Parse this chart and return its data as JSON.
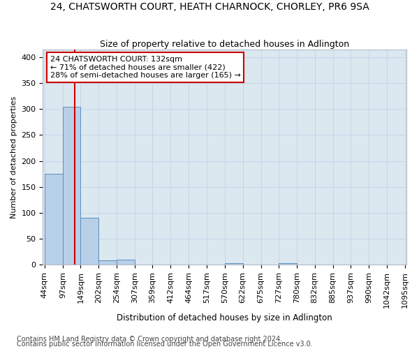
{
  "title": "24, CHATSWORTH COURT, HEATH CHARNOCK, CHORLEY, PR6 9SA",
  "subtitle": "Size of property relative to detached houses in Adlington",
  "xlabel": "Distribution of detached houses by size in Adlington",
  "ylabel": "Number of detached properties",
  "bins": [
    "44sqm",
    "97sqm",
    "149sqm",
    "202sqm",
    "254sqm",
    "307sqm",
    "359sqm",
    "412sqm",
    "464sqm",
    "517sqm",
    "570sqm",
    "622sqm",
    "675sqm",
    "727sqm",
    "780sqm",
    "832sqm",
    "885sqm",
    "937sqm",
    "990sqm",
    "1042sqm",
    "1095sqm"
  ],
  "bin_edges": [
    44,
    97,
    149,
    202,
    254,
    307,
    359,
    412,
    464,
    517,
    570,
    622,
    675,
    727,
    780,
    832,
    885,
    937,
    990,
    1042,
    1095
  ],
  "counts": [
    175,
    305,
    90,
    8,
    10,
    0,
    0,
    0,
    0,
    0,
    3,
    0,
    0,
    3,
    0,
    0,
    0,
    0,
    0,
    0
  ],
  "bar_color": "#b8cfe8",
  "bar_edge_color": "#5a8fbc",
  "property_size": 132,
  "red_line_color": "#cc0000",
  "annotation_text": "24 CHATSWORTH COURT: 132sqm\n← 71% of detached houses are smaller (422)\n28% of semi-detached houses are larger (165) →",
  "annotation_box_color": "#ffffff",
  "annotation_box_edge_color": "#cc0000",
  "ylim": [
    0,
    415
  ],
  "yticks": [
    0,
    50,
    100,
    150,
    200,
    250,
    300,
    350,
    400
  ],
  "grid_color": "#c8d4e8",
  "bg_color": "#dce8f0",
  "footer1": "Contains HM Land Registry data © Crown copyright and database right 2024.",
  "footer2": "Contains public sector information licensed under the Open Government Licence v3.0.",
  "title_fontsize": 10,
  "subtitle_fontsize": 9,
  "xlabel_fontsize": 8.5,
  "ylabel_fontsize": 8,
  "tick_fontsize": 8,
  "annot_fontsize": 8,
  "footer_fontsize": 7
}
